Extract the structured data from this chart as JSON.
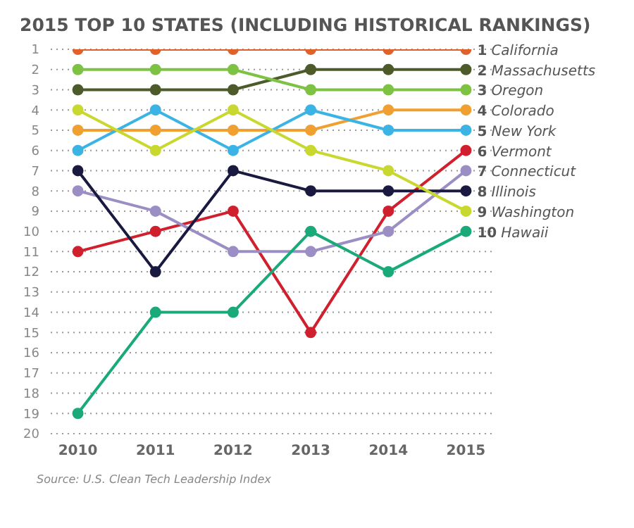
{
  "chart_data": {
    "type": "line",
    "title": "2015 TOP 10 STATES (INCLUDING HISTORICAL RANKINGS)",
    "categories": [
      "2010",
      "2011",
      "2012",
      "2013",
      "2014",
      "2015"
    ],
    "series": [
      {
        "name": "California",
        "color": "#e0622a",
        "values": [
          1,
          1,
          1,
          1,
          1,
          1
        ],
        "value_labels": [
          null,
          null,
          null,
          null,
          null,
          "1"
        ]
      },
      {
        "name": "Massachusetts",
        "color": "#4d5a2a",
        "values": [
          3,
          3,
          3,
          2,
          2,
          2
        ],
        "value_labels": [
          null,
          null,
          null,
          null,
          null,
          "2"
        ]
      },
      {
        "name": "Oregon",
        "color": "#7dc243",
        "values": [
          2,
          2,
          2,
          3,
          3,
          3
        ],
        "value_labels": [
          null,
          null,
          null,
          null,
          null,
          "3"
        ]
      },
      {
        "name": "Colorado",
        "color": "#f0a030",
        "values": [
          5,
          5,
          5,
          5,
          4,
          4
        ],
        "value_labels": [
          null,
          null,
          null,
          null,
          null,
          "4"
        ]
      },
      {
        "name": "New York",
        "color": "#3bb4e5",
        "values": [
          6,
          4,
          6,
          4,
          5,
          5
        ],
        "value_labels": [
          null,
          null,
          null,
          null,
          null,
          "5"
        ]
      },
      {
        "name": "Vermont",
        "color": "#d0202e",
        "values": [
          11,
          10,
          9,
          15,
          9,
          6
        ],
        "value_labels": [
          null,
          null,
          null,
          null,
          null,
          "6"
        ]
      },
      {
        "name": "Connecticut",
        "color": "#9b8ec4",
        "values": [
          8,
          9,
          11,
          11,
          10,
          7
        ],
        "value_labels": [
          null,
          null,
          null,
          null,
          null,
          "7"
        ]
      },
      {
        "name": "Illinois",
        "color": "#1a1a40",
        "values": [
          7,
          12,
          7,
          8,
          8,
          8
        ],
        "value_labels": [
          null,
          null,
          null,
          null,
          null,
          "8"
        ]
      },
      {
        "name": "Washington",
        "color": "#c8d82e",
        "values": [
          4,
          6,
          4,
          6,
          7,
          9
        ],
        "value_labels": [
          null,
          null,
          null,
          null,
          null,
          "9"
        ]
      },
      {
        "name": "Hawaii",
        "color": "#1aaa7a",
        "values": [
          19,
          14,
          14,
          10,
          12,
          10
        ],
        "value_labels": [
          null,
          null,
          null,
          null,
          null,
          "10"
        ]
      }
    ],
    "ylim": [
      20,
      1
    ],
    "yticks": [
      1,
      2,
      3,
      4,
      5,
      6,
      7,
      8,
      9,
      10,
      11,
      12,
      13,
      14,
      15,
      16,
      17,
      18,
      19,
      20
    ],
    "grid": "y",
    "marker": "circle",
    "line_style": "solid",
    "annotations": [
      "Source: U.S. Clean Tech Leadership Index"
    ]
  }
}
